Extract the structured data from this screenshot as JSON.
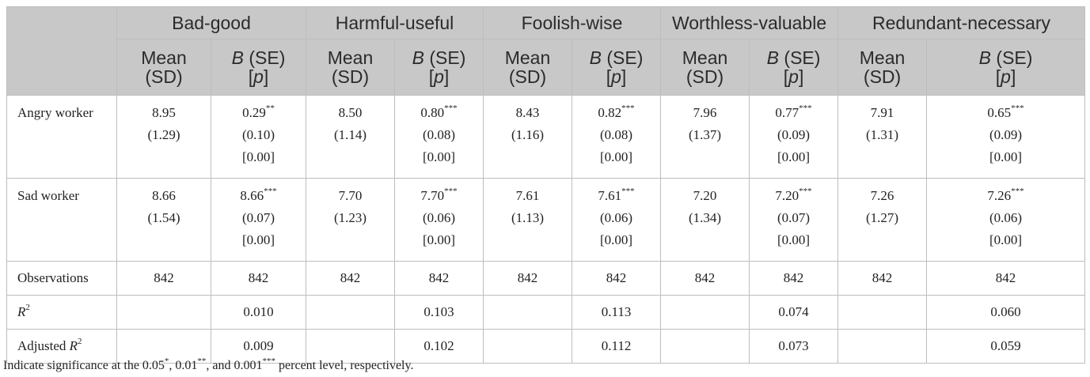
{
  "groups": [
    "Bad-good",
    "Harmful-useful",
    "Foolish-wise",
    "Worthless-valuable",
    "Redundant-necessary"
  ],
  "sub_headers": {
    "mean_line1": "Mean",
    "mean_line2": "(SD)",
    "b_letter": "B",
    "b_line1_rest": " (SE)",
    "p_open": "[",
    "p_letter": "p",
    "p_close": "]"
  },
  "rows": {
    "angry": {
      "label": "Angry worker",
      "cells": [
        {
          "mean": "8.95",
          "sd": "(1.29)",
          "b": "0.29**",
          "se": "(0.10)",
          "p": "[0.00]"
        },
        {
          "mean": "8.50",
          "sd": "(1.14)",
          "b": "0.80***",
          "se": "(0.08)",
          "p": "[0.00]"
        },
        {
          "mean": "8.43",
          "sd": "(1.16)",
          "b": "0.82***",
          "se": "(0.08)",
          "p": "[0.00]"
        },
        {
          "mean": "7.96",
          "sd": "(1.37)",
          "b": "0.77***",
          "se": "(0.09)",
          "p": "[0.00]"
        },
        {
          "mean": "7.91",
          "sd": "(1.31)",
          "b": "0.65***",
          "se": "(0.09)",
          "p": "[0.00]"
        }
      ]
    },
    "sad": {
      "label": "Sad worker",
      "cells": [
        {
          "mean": "8.66",
          "sd": "(1.54)",
          "b": "8.66***",
          "se": "(0.07)",
          "p": "[0.00]"
        },
        {
          "mean": "7.70",
          "sd": "(1.23)",
          "b": "7.70***",
          "se": "(0.06)",
          "p": "[0.00]"
        },
        {
          "mean": "7.61",
          "sd": "(1.13)",
          "b": "7.61***",
          "se": "(0.06)",
          "p": "[0.00]"
        },
        {
          "mean": "7.20",
          "sd": "(1.34)",
          "b": "7.20***",
          "se": "(0.07)",
          "p": "[0.00]"
        },
        {
          "mean": "7.26",
          "sd": "(1.27)",
          "b": "7.26***",
          "se": "(0.06)",
          "p": "[0.00]"
        }
      ]
    },
    "observations": {
      "label": "Observations",
      "values": [
        "842",
        "842",
        "842",
        "842",
        "842",
        "842",
        "842",
        "842",
        "842",
        "842"
      ]
    },
    "r2": {
      "label_prefix": "R",
      "label_sup": "2",
      "values": [
        "",
        "0.010",
        "",
        "0.103",
        "",
        "0.113",
        "",
        "0.074",
        "",
        "0.060"
      ]
    },
    "adj_r2": {
      "label_prefix": "Adjusted ",
      "label_r": "R",
      "label_sup": "2",
      "values": [
        "",
        "0.009",
        "",
        "0.102",
        "",
        "0.112",
        "",
        "0.073",
        "",
        "0.059"
      ]
    }
  },
  "footnote": {
    "text1": "Indicate significance at the 0.05",
    "s1": "*",
    "text2": ", 0.01",
    "s2": "**",
    "text3": ", and 0.001",
    "s3": "***",
    "text4": " percent level, respectively."
  }
}
